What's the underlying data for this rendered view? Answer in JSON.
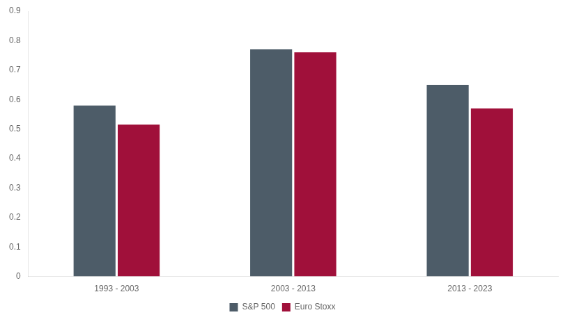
{
  "chart_data": {
    "type": "bar",
    "categories": [
      "1993 - 2003",
      "2003 - 2013",
      "2013 - 2023"
    ],
    "series": [
      {
        "name": "S&P 500",
        "color": "#4d5c68",
        "values": [
          0.58,
          0.77,
          0.65
        ]
      },
      {
        "name": "Euro Stoxx",
        "color": "#a0103a",
        "values": [
          0.515,
          0.76,
          0.57
        ]
      }
    ],
    "ylim": [
      0,
      0.9
    ],
    "yticks": [
      0,
      0.1,
      0.2,
      0.3,
      0.4,
      0.5,
      0.6,
      0.7,
      0.8,
      0.9
    ],
    "grid": false,
    "legend": "bottom"
  }
}
